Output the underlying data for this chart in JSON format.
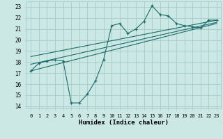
{
  "title": "",
  "xlabel": "Humidex (Indice chaleur)",
  "xlim": [
    -0.5,
    23.5
  ],
  "ylim": [
    13.8,
    23.5
  ],
  "yticks": [
    14,
    15,
    16,
    17,
    18,
    19,
    20,
    21,
    22,
    23
  ],
  "xticks": [
    0,
    1,
    2,
    3,
    4,
    5,
    6,
    7,
    8,
    9,
    10,
    11,
    12,
    13,
    14,
    15,
    16,
    17,
    18,
    19,
    20,
    21,
    22,
    23
  ],
  "bg_color": "#cce8e4",
  "grid_color": "#aacfcb",
  "line_color": "#1a6b6b",
  "line1_x": [
    0,
    1,
    2,
    3,
    4,
    5,
    6,
    7,
    8,
    9,
    10,
    11,
    12,
    13,
    14,
    15,
    16,
    17,
    18,
    19,
    20,
    21,
    22,
    23
  ],
  "line1_y": [
    17.2,
    17.9,
    18.1,
    18.2,
    18.1,
    14.3,
    14.3,
    15.1,
    16.3,
    18.2,
    21.3,
    21.5,
    20.6,
    21.0,
    21.7,
    23.1,
    22.3,
    22.2,
    21.5,
    21.3,
    21.2,
    21.1,
    21.8,
    21.8
  ],
  "line2_x": [
    0,
    23
  ],
  "line2_y": [
    17.2,
    21.5
  ],
  "line3_x": [
    0,
    23
  ],
  "line3_y": [
    17.8,
    21.6
  ],
  "line4_x": [
    0,
    23
  ],
  "line4_y": [
    18.5,
    21.8
  ]
}
